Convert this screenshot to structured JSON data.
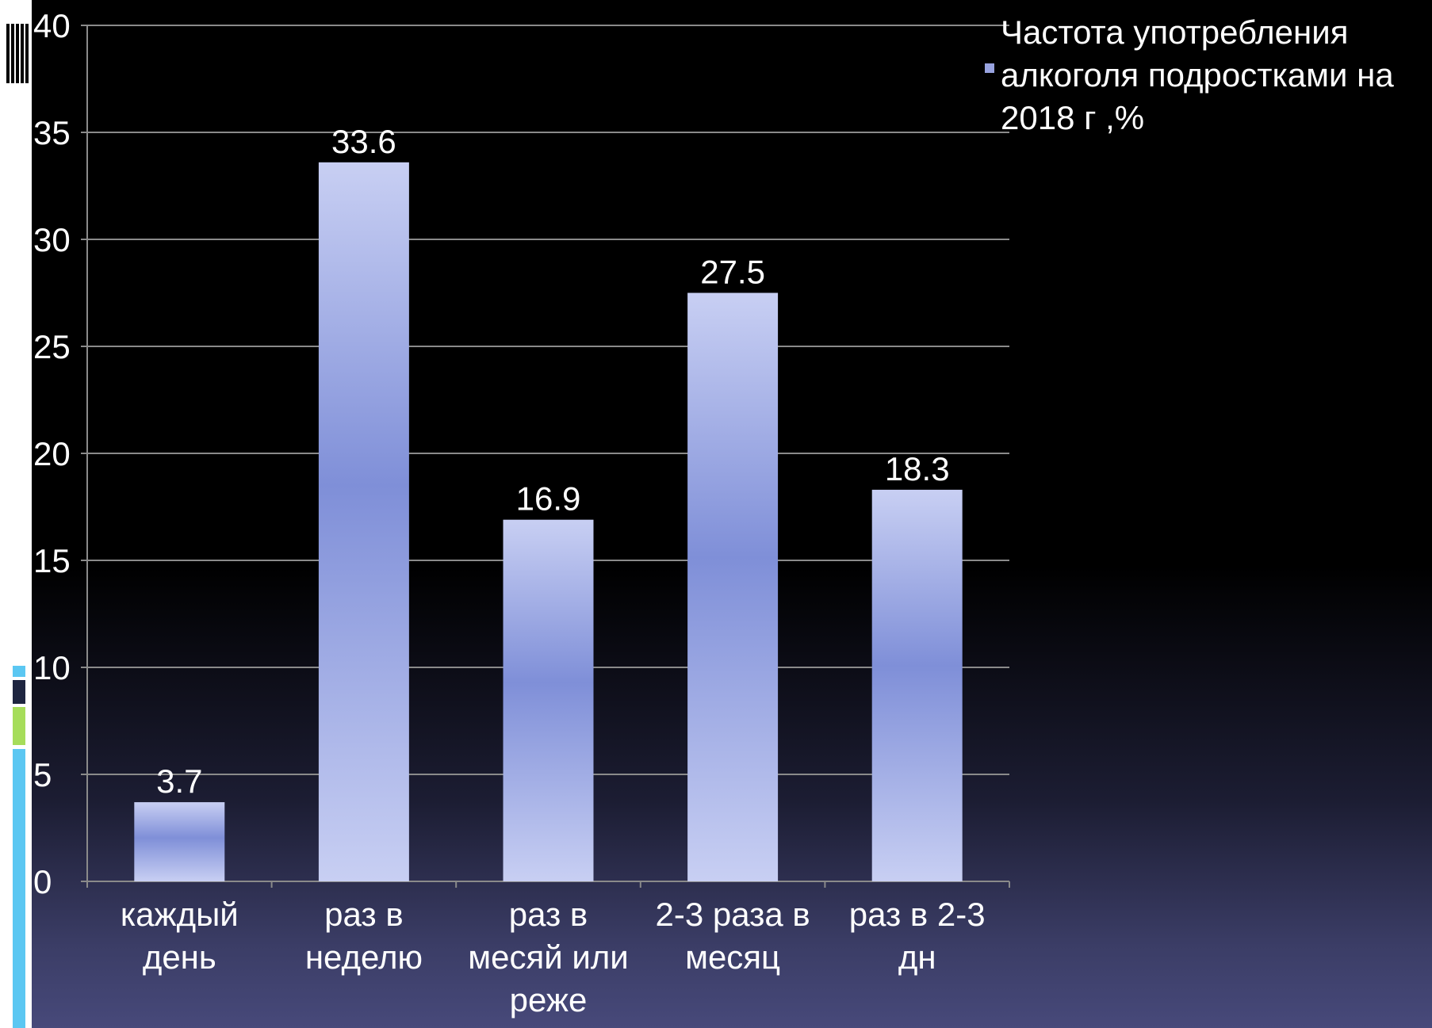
{
  "chart_data": {
    "type": "bar",
    "categories": [
      [
        "каждый",
        "день"
      ],
      [
        "раз в",
        "неделю"
      ],
      [
        "раз в",
        "месяй или",
        "реже"
      ],
      [
        "2-3 раза в",
        "месяц"
      ],
      [
        "раз в 2-3",
        "дн"
      ]
    ],
    "series": [
      {
        "name": "Частота употребления алкоголя подростками на 2018 г ,%",
        "values": [
          3.7,
          33.6,
          16.9,
          27.5,
          18.3
        ]
      }
    ],
    "data_labels": [
      "3.7",
      "33.6",
      "16.9",
      "27.5",
      "18.3"
    ],
    "y_ticks": [
      "0",
      "5",
      "10",
      "15",
      "20",
      "25",
      "30",
      "35",
      "40"
    ],
    "ylim": [
      0,
      40
    ],
    "grid": true,
    "legend_position": "top-right",
    "colors": {
      "bar_light": "#c8cff3",
      "bar_dark": "#7f8fd8",
      "gridline": "#8a8a8a",
      "text": "#ffffff"
    }
  },
  "legend": {
    "lines": [
      "Частота употребления",
      "алкоголя подростками на",
      "2018 г ,%"
    ]
  }
}
